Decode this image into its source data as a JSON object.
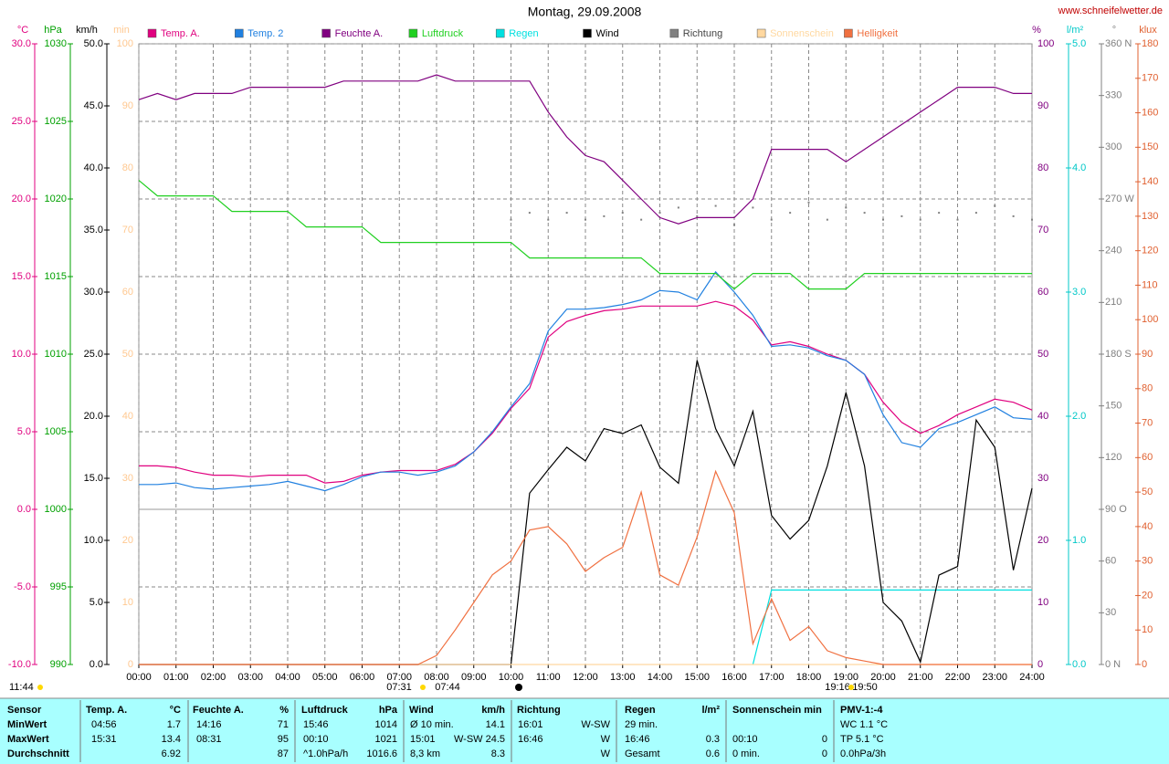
{
  "chart_data": {
    "type": "line",
    "title": "Montag, 29.09.2008",
    "source": "www.schneifelwetter.de",
    "annotations": [
      "11:44",
      "07:31",
      "07:44",
      "19:16",
      "19:50"
    ],
    "grid": true,
    "x": [
      0,
      0.5,
      1,
      1.5,
      2,
      2.5,
      3,
      3.5,
      4,
      4.5,
      5,
      5.5,
      6,
      6.5,
      7,
      7.5,
      8,
      8.5,
      9,
      9.5,
      10,
      10.5,
      11,
      11.5,
      12,
      12.5,
      13,
      13.5,
      14,
      14.5,
      15,
      15.5,
      16,
      16.5,
      17,
      17.5,
      18,
      18.5,
      19,
      19.5,
      20,
      20.5,
      21,
      21.5,
      22,
      22.5,
      23,
      23.5,
      24
    ],
    "xlim": [
      0,
      24
    ],
    "xticks": [
      {
        "value": 0,
        "label": "00:00"
      },
      {
        "value": 1,
        "label": "01:00"
      },
      {
        "value": 2,
        "label": "02:00"
      },
      {
        "value": 3,
        "label": "03:00"
      },
      {
        "value": 4,
        "label": "04:00"
      },
      {
        "value": 5,
        "label": "05:00"
      },
      {
        "value": 6,
        "label": "06:00"
      },
      {
        "value": 7,
        "label": "07:00"
      },
      {
        "value": 8,
        "label": "08:00"
      },
      {
        "value": 9,
        "label": "09:00"
      },
      {
        "value": 10,
        "label": "10:00"
      },
      {
        "value": 11,
        "label": "11:00"
      },
      {
        "value": 12,
        "label": "12:00"
      },
      {
        "value": 13,
        "label": "13:00"
      },
      {
        "value": 14,
        "label": "14:00"
      },
      {
        "value": 15,
        "label": "15:00"
      },
      {
        "value": 16,
        "label": "16:00"
      },
      {
        "value": 17,
        "label": "17:00"
      },
      {
        "value": 18,
        "label": "18:00"
      },
      {
        "value": 19,
        "label": "19:00"
      },
      {
        "value": 20,
        "label": "20:00"
      },
      {
        "value": 21,
        "label": "21:00"
      },
      {
        "value": 22,
        "label": "22:00"
      },
      {
        "value": 23,
        "label": "23:00"
      },
      {
        "value": 24,
        "label": "24:00"
      }
    ],
    "axes": [
      {
        "label": "°C",
        "color": "#e0007f",
        "lim": [
          -10,
          30
        ],
        "ticks": [
          {
            "value": -10,
            "label": "-10.0"
          },
          {
            "value": -5,
            "label": "-5.0"
          },
          {
            "value": 0,
            "label": "0.0"
          },
          {
            "value": 5,
            "label": "5.0"
          },
          {
            "value": 10,
            "label": "10.0"
          },
          {
            "value": 15,
            "label": "15.0"
          },
          {
            "value": 20,
            "label": "20.0"
          },
          {
            "value": 25,
            "label": "25.0"
          },
          {
            "value": 30,
            "label": "30.0"
          }
        ]
      },
      {
        "label": "hPa",
        "color": "#00a000",
        "lim": [
          990,
          1030
        ],
        "ticks": [
          990,
          995,
          1000,
          1005,
          1010,
          1015,
          1020,
          1025,
          1030
        ]
      },
      {
        "label": "km/h",
        "color": "#000000",
        "lim": [
          0,
          50
        ],
        "ticks": [
          {
            "value": 0,
            "label": "0.0"
          },
          {
            "value": 5,
            "label": "5.0"
          },
          {
            "value": 10,
            "label": "10.0"
          },
          {
            "value": 15,
            "label": "15.0"
          },
          {
            "value": 20,
            "label": "20.0"
          },
          {
            "value": 25,
            "label": "25.0"
          },
          {
            "value": 30,
            "label": "30.0"
          },
          {
            "value": 35,
            "label": "35.0"
          },
          {
            "value": 40,
            "label": "40.0"
          },
          {
            "value": 45,
            "label": "45.0"
          },
          {
            "value": 50,
            "label": "50.0"
          }
        ]
      },
      {
        "label": "min",
        "color": "#ffc890",
        "lim": [
          0,
          100
        ],
        "ticks": [
          0,
          10,
          20,
          30,
          40,
          50,
          60,
          70,
          80,
          90,
          100
        ]
      },
      {
        "label": "%",
        "color": "#800080",
        "lim": [
          0,
          100
        ],
        "ticks": [
          0,
          10,
          20,
          30,
          40,
          50,
          60,
          70,
          80,
          90,
          100
        ]
      },
      {
        "label": "l/m²",
        "color": "#00c8c8",
        "lim": [
          0,
          5
        ],
        "ticks": [
          {
            "value": 0,
            "label": "0.0"
          },
          {
            "value": 1,
            "label": "1.0"
          },
          {
            "value": 2,
            "label": "2.0"
          },
          {
            "value": 3,
            "label": "3.0"
          },
          {
            "value": 4,
            "label": "4.0"
          },
          {
            "value": 5,
            "label": "5.0"
          }
        ]
      },
      {
        "label": "°",
        "color": "#808080",
        "lim": [
          0,
          360
        ],
        "ticks": [
          {
            "value": 0,
            "label": "0 N"
          },
          30,
          60,
          {
            "value": 90,
            "label": "90 O"
          },
          120,
          150,
          {
            "value": 180,
            "label": "180 S"
          },
          210,
          240,
          {
            "value": 270,
            "label": "270 W"
          },
          300,
          330,
          {
            "value": 360,
            "label": "360 N"
          }
        ]
      },
      {
        "label": "klux",
        "color": "#e06030",
        "lim": [
          0,
          180
        ],
        "ticks": [
          0,
          10,
          20,
          30,
          40,
          50,
          60,
          70,
          80,
          90,
          100,
          110,
          120,
          130,
          140,
          150,
          160,
          170,
          180
        ]
      }
    ],
    "series": [
      {
        "name": "Temp. A.",
        "color": "#e0007f",
        "axis": 0,
        "values": [
          2.8,
          2.8,
          2.7,
          2.4,
          2.2,
          2.2,
          2.1,
          2.2,
          2.2,
          2.2,
          1.7,
          1.8,
          2.2,
          2.4,
          2.5,
          2.5,
          2.5,
          2.9,
          3.7,
          4.9,
          6.5,
          7.8,
          11.1,
          12.1,
          12.5,
          12.8,
          12.9,
          13.1,
          13.1,
          13.1,
          13.1,
          13.4,
          13.1,
          12.2,
          10.6,
          10.8,
          10.5,
          10.0,
          9.6,
          8.7,
          6.9,
          5.6,
          4.9,
          5.4,
          6.1,
          6.6,
          7.1,
          6.9,
          6.4
        ]
      },
      {
        "name": "Temp. 2",
        "color": "#2080e0",
        "axis": 0,
        "values": [
          1.6,
          1.6,
          1.7,
          1.4,
          1.3,
          1.4,
          1.5,
          1.6,
          1.8,
          1.5,
          1.2,
          1.6,
          2.1,
          2.4,
          2.4,
          2.2,
          2.4,
          2.8,
          3.7,
          5.0,
          6.6,
          8.1,
          11.5,
          12.9,
          12.9,
          13.0,
          13.2,
          13.5,
          14.1,
          14.0,
          13.5,
          15.3,
          14.0,
          12.5,
          10.5,
          10.6,
          10.4,
          9.9,
          9.6,
          8.7,
          6.1,
          4.3,
          4.0,
          5.2,
          5.6,
          6.1,
          6.6,
          5.9,
          5.8
        ]
      },
      {
        "name": "Feuchte A.",
        "color": "#800080",
        "axis": 4,
        "values": [
          91,
          92,
          91,
          92,
          92,
          92,
          93,
          93,
          93,
          93,
          93,
          94,
          94,
          94,
          94,
          94,
          95,
          94,
          94,
          94,
          94,
          94,
          89,
          85,
          82,
          81,
          78,
          75,
          72,
          71,
          72,
          72,
          72,
          75,
          83,
          83,
          83,
          83,
          81,
          83,
          85,
          87,
          89,
          91,
          93,
          93,
          93,
          92,
          92
        ]
      },
      {
        "name": "Luftdruck",
        "color": "#20d020",
        "axis": 1,
        "values": [
          1021.2,
          1020.2,
          1020.2,
          1020.2,
          1020.2,
          1019.2,
          1019.2,
          1019.2,
          1019.2,
          1018.2,
          1018.2,
          1018.2,
          1018.2,
          1017.2,
          1017.2,
          1017.2,
          1017.2,
          1017.2,
          1017.2,
          1017.2,
          1017.2,
          1016.2,
          1016.2,
          1016.2,
          1016.2,
          1016.2,
          1016.2,
          1016.2,
          1015.2,
          1015.2,
          1015.2,
          1015.2,
          1014.2,
          1015.2,
          1015.2,
          1015.2,
          1014.2,
          1014.2,
          1014.2,
          1015.2,
          1015.2,
          1015.2,
          1015.2,
          1015.2,
          1015.2,
          1015.2,
          1015.2,
          1015.2,
          1015.2
        ]
      },
      {
        "name": "Regen",
        "color": "#00e0e0",
        "axis": 5,
        "values": [
          null,
          null,
          null,
          null,
          null,
          null,
          null,
          null,
          null,
          null,
          null,
          null,
          null,
          null,
          null,
          null,
          null,
          null,
          null,
          null,
          null,
          null,
          null,
          null,
          null,
          null,
          null,
          null,
          null,
          null,
          null,
          null,
          null,
          0,
          0.6,
          0.6,
          0.6,
          0.6,
          0.6,
          0.6,
          0.6,
          0.6,
          0.6,
          0.6,
          0.6,
          0.6,
          0.6,
          0.6,
          0.6
        ]
      },
      {
        "name": "Wind",
        "color": "#000000",
        "axis": 2,
        "values": [
          0,
          0,
          0,
          0,
          0,
          0,
          0,
          0,
          0,
          0,
          0,
          0,
          0,
          0,
          0,
          0,
          0,
          0,
          0,
          0,
          0,
          13.8,
          15.7,
          17.5,
          16.4,
          19.0,
          18.6,
          19.3,
          15.9,
          14.6,
          24.5,
          19.0,
          16.0,
          20.4,
          12.0,
          10.1,
          11.6,
          16.0,
          21.9,
          16.0,
          5.0,
          3.5,
          0.2,
          7.2,
          7.9,
          19.7,
          17.5,
          7.6,
          14.2
        ]
      },
      {
        "name": "Richtung",
        "color": "#808080",
        "axis": 6,
        "style": "dots",
        "values": [
          null,
          null,
          null,
          null,
          null,
          null,
          null,
          null,
          null,
          null,
          null,
          null,
          null,
          null,
          null,
          null,
          null,
          null,
          null,
          null,
          258,
          262,
          258,
          262,
          258,
          260,
          262,
          258,
          262,
          265,
          260,
          266,
          255,
          265,
          258,
          262,
          268,
          258,
          265,
          262,
          258,
          260,
          258,
          262,
          258,
          262,
          266,
          260,
          258
        ]
      },
      {
        "name": "Sonnenschein",
        "color": "#ffd8a0",
        "axis": 3,
        "values": [
          0,
          0,
          0,
          0,
          0,
          0,
          0,
          0,
          0,
          0,
          0,
          0,
          0,
          0,
          0,
          0,
          0,
          0,
          0,
          0,
          0,
          0,
          0,
          0,
          0,
          0,
          0,
          0,
          0,
          0,
          0,
          0,
          0,
          0,
          0,
          0,
          0,
          0,
          0,
          0,
          0,
          0,
          0,
          0,
          0,
          0,
          0,
          0,
          0
        ]
      },
      {
        "name": "Helligkeit",
        "color": "#f07040",
        "axis": 7,
        "values": [
          0,
          0,
          0,
          0,
          0,
          0,
          0,
          0,
          0,
          0,
          0,
          0,
          0,
          0,
          0,
          0,
          2.6,
          10,
          18,
          26,
          30,
          39,
          40,
          35,
          27,
          31,
          34,
          50,
          26,
          23,
          37,
          56,
          44,
          6,
          19,
          7,
          11,
          4,
          2,
          1,
          0,
          0,
          0,
          0,
          0,
          0,
          0,
          0,
          0
        ]
      }
    ]
  },
  "table": {
    "rows": [
      {
        "label": "Sensor",
        "t_time": "Temp. A.",
        "t_val": "°C",
        "f_time": "Feuchte A.",
        "f_val": "%",
        "p_time": "Luftdruck",
        "p_val": "hPa",
        "w_time": "Wind",
        "w_val": "km/h",
        "d_time": "Richtung",
        "r_time": "Regen",
        "r_val": "l/m²",
        "s_time": "Sonnenschein min",
        "pmv": "PMV-1:-4"
      },
      {
        "label": "MinWert",
        "t_time": "04:56",
        "t_val": "1.7",
        "f_time": "14:16",
        "f_val": "71",
        "p_time": "15:46",
        "p_val": "1014",
        "w_time": "Ø 10 min.",
        "w_val": "14.1",
        "d_time": "16:01",
        "d_val": "W-SW",
        "r_time": "29 min.",
        "pmv": "WC 1.1 °C"
      },
      {
        "label": "MaxWert",
        "t_time": "15:31",
        "t_val": "13.4",
        "f_time": "08:31",
        "f_val": "95",
        "p_time": "00:10",
        "p_val": "1021",
        "w_time": "15:01",
        "w_val": "W-SW 24.5",
        "d_time": "16:46",
        "d_val": "W",
        "r_time": "16:46",
        "r_val": "0.3",
        "s_time": "00:10",
        "s_val": "0",
        "pmv": "TP 5.1 °C"
      },
      {
        "label": "Durchschnitt",
        "t_val": "6.92",
        "f_val": "87",
        "p_time": "^1.0hPa/h",
        "p_val": "1016.6",
        "w_time": "8,3 km",
        "w_val": "8.3",
        "d_val": "W",
        "r_time": "Gesamt",
        "r_val": "0.6",
        "s_time": "0 min.",
        "s_val": "0",
        "pmv": "0.0hPa/3h"
      }
    ]
  }
}
